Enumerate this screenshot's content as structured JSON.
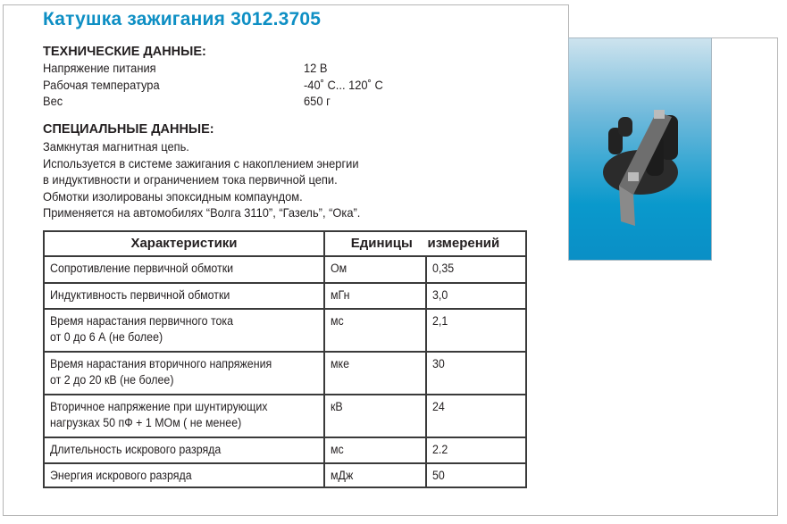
{
  "title": "Катушка зажигания 3012.3705",
  "tech": {
    "heading": "ТЕХНИЧЕСКИЕ ДАННЫЕ:",
    "rows": [
      {
        "label": "Напряжение питания",
        "value": "12 В"
      },
      {
        "label": "Рабочая температура",
        "value": "-40˚ C... 120˚ C"
      },
      {
        "label": "Вес",
        "value": "650 г"
      }
    ]
  },
  "special": {
    "heading": "СПЕЦИАЛЬНЫЕ ДАННЫЕ:",
    "lines": [
      "Замкнутая магнитная цепь.",
      "Используется в системе зажигания с накоплением энергии",
      "в индуктивности и ограничением тока первичной цепи.",
      "Обмотки изолированы эпоксидным компаундом.",
      "Применяется на автомобилях “Волга 3110”, “Газель”, “Ока”."
    ]
  },
  "table": {
    "headers": [
      "Характеристики",
      "Единицы    измерений"
    ],
    "rows": [
      [
        "Сопротивление первичной обмотки",
        "Ом",
        "0,35"
      ],
      [
        "Индуктивность первичной обмотки",
        "мГн",
        "3,0"
      ],
      [
        "Время нарастания первичного тока\nот 0 до 6 А (не более)",
        "мс",
        "2,1"
      ],
      [
        "Время нарастания вторичного напряжения\nот 2 до 20 кВ (не более)",
        "мке",
        "30"
      ],
      [
        "Вторичное напряжение при шунтирующих\nнагрузках 50 пФ + 1 МОм ( не менее)",
        "кВ",
        "24"
      ],
      [
        "Длительность искрового разряда",
        "мс",
        "2.2"
      ],
      [
        "Энергия искрового разряда",
        "мДж",
        "50"
      ]
    ]
  },
  "colors": {
    "title": "#0e8fc4",
    "photo_bg": "#0a99cc"
  }
}
